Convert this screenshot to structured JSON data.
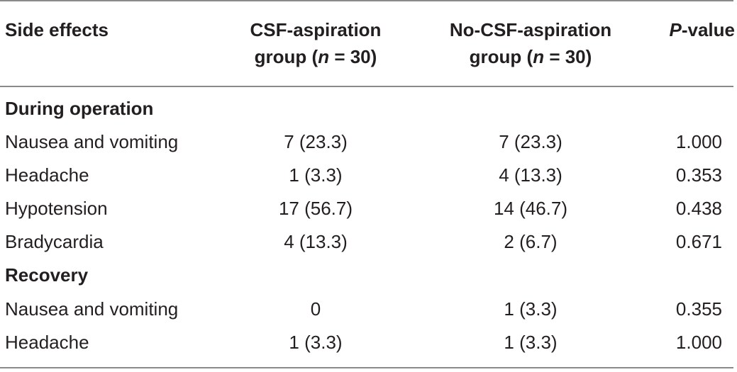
{
  "header": {
    "col0": "Side effects",
    "col1_line1": "CSF-aspiration",
    "col1_line2_pre": "group (",
    "col1_line2_n": "n",
    "col1_line2_post": " = 30)",
    "col2_line1": "No-CSF-aspiration",
    "col2_line2_pre": "group (",
    "col2_line2_n": "n",
    "col2_line2_post": " = 30)",
    "col3_p": "P",
    "col3_rest": "-value"
  },
  "sections": [
    {
      "title": "During operation",
      "rows": [
        {
          "label": "Nausea and vomiting",
          "csf": "7 (23.3)",
          "nocsf": "7 (23.3)",
          "p": "1.000"
        },
        {
          "label": "Headache",
          "csf": "1 (3.3)",
          "nocsf": "4 (13.3)",
          "p": "0.353"
        },
        {
          "label": "Hypotension",
          "csf": "17 (56.7)",
          "nocsf": "14 (46.7)",
          "p": "0.438"
        },
        {
          "label": "Bradycardia",
          "csf": "4 (13.3)",
          "nocsf": "2 (6.7)",
          "p": "0.671"
        }
      ]
    },
    {
      "title": "Recovery",
      "rows": [
        {
          "label": "Nausea and vomiting",
          "csf": "0",
          "nocsf": "1 (3.3)",
          "p": "0.355"
        },
        {
          "label": "Headache",
          "csf": "1 (3.3)",
          "nocsf": "1 (3.3)",
          "p": "1.000"
        }
      ]
    }
  ]
}
